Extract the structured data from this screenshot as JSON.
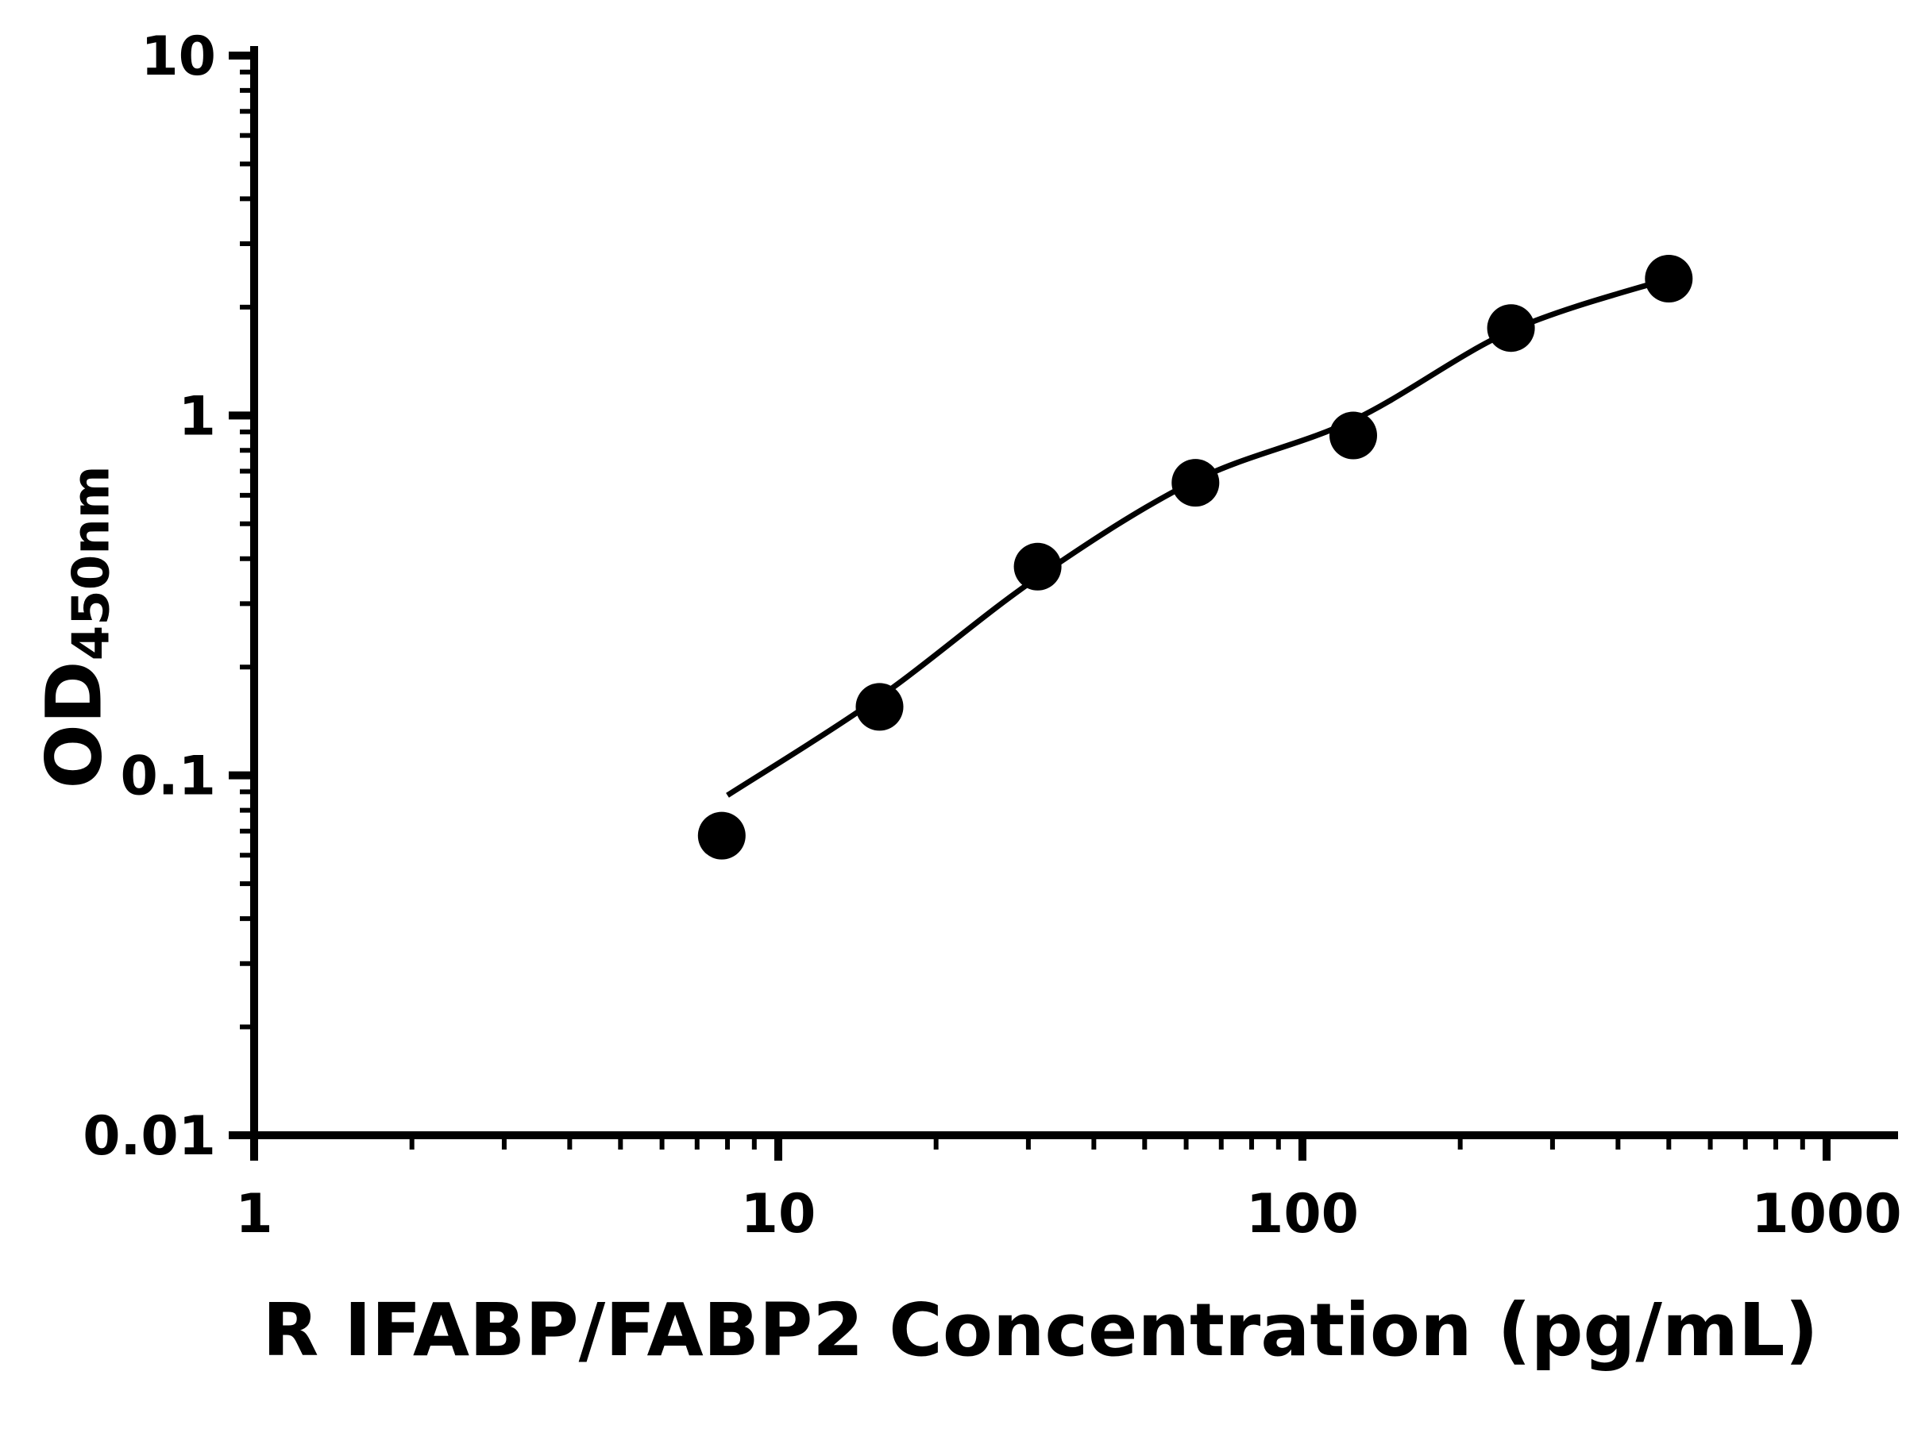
{
  "figure": {
    "background": "#ffffff"
  },
  "chart_data": {
    "type": "scatter",
    "title": "",
    "xlabel": "R IFABP/FABP2 Concentration (pg/mL)",
    "ylabel_main": "OD",
    "ylabel_sub": "450nm",
    "x_scale": "log",
    "y_scale": "log",
    "xlim": [
      1,
      1000
    ],
    "ylim": [
      0.01,
      10
    ],
    "grid": false,
    "legend": "none",
    "axis_color": "#000000",
    "marker_color": "#000000",
    "line_color": "#000000",
    "x_ticks": [
      {
        "value": 1,
        "label": "1"
      },
      {
        "value": 10,
        "label": "10"
      },
      {
        "value": 100,
        "label": "100"
      },
      {
        "value": 1000,
        "label": "1000"
      }
    ],
    "y_ticks": [
      {
        "value": 0.01,
        "label": "0.01"
      },
      {
        "value": 0.1,
        "label": "0.1"
      },
      {
        "value": 1,
        "label": "1"
      },
      {
        "value": 10,
        "label": "10"
      }
    ],
    "series": [
      {
        "name": "fit-curve",
        "type": "line",
        "color": "#000000",
        "points": [
          [
            8,
            0.088
          ],
          [
            15.6,
            0.165
          ],
          [
            31.25,
            0.355
          ],
          [
            62.5,
            0.66
          ],
          [
            125,
            0.97
          ],
          [
            250,
            1.72
          ],
          [
            500,
            2.4
          ]
        ]
      },
      {
        "name": "standard-points",
        "type": "scatter",
        "marker": "circle",
        "color": "#000000",
        "points": [
          [
            7.8,
            0.068
          ],
          [
            15.6,
            0.155
          ],
          [
            31.25,
            0.38
          ],
          [
            62.5,
            0.65
          ],
          [
            125,
            0.88
          ],
          [
            250,
            1.75
          ],
          [
            500,
            2.4
          ]
        ]
      }
    ]
  }
}
